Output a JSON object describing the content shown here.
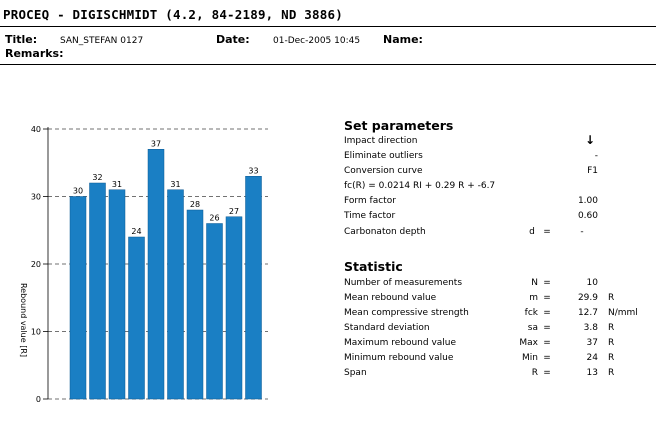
{
  "header": {
    "title": "PROCEQ - DIGISCHMIDT (4.2, 84-2189, ND 3886)",
    "title_label": "Title:",
    "title_value": "SAN_STEFAN 0127",
    "date_label": "Date:",
    "date_value": "01-Dec-2005 10:45",
    "name_label": "Name:",
    "remarks_label": "Remarks:"
  },
  "set_parameters": {
    "title": "Set parameters",
    "impact_direction": {
      "label": "Impact direction",
      "value": "↓"
    },
    "eliminate_outliers": {
      "label": "Eliminate outliers",
      "value": "-"
    },
    "conversion_curve": {
      "label": "Conversion curve",
      "value": "F1"
    },
    "formula": "fc(R) = 0.0214 RI + 0.29 R + -6.7",
    "form_factor": {
      "label": "Form factor",
      "value": "1.00"
    },
    "time_factor": {
      "label": "Time factor",
      "value": "0.60"
    },
    "carbonation_depth": {
      "label": "Carbonaton depth",
      "symbol": "d",
      "eq": "=",
      "value": "-"
    }
  },
  "statistic": {
    "title": "Statistic",
    "rows": [
      {
        "label": "Number of measurements",
        "symbol": "N",
        "eq": "=",
        "value": "10",
        "unit": ""
      },
      {
        "label": "Mean rebound value",
        "symbol": "m",
        "eq": "=",
        "value": "29.9",
        "unit": "R"
      },
      {
        "label": "Mean compressive strength",
        "symbol": "fck",
        "eq": "=",
        "value": "12.7",
        "unit": "N/mml"
      },
      {
        "label": "Standard deviation",
        "symbol": "sa",
        "eq": "=",
        "value": "3.8",
        "unit": "R"
      },
      {
        "label": "Maximum rebound value",
        "symbol": "Max",
        "eq": "=",
        "value": "37",
        "unit": "R"
      },
      {
        "label": "Minimum rebound value",
        "symbol": "Min",
        "eq": "=",
        "value": "24",
        "unit": "R"
      },
      {
        "label": "Span",
        "symbol": "R",
        "eq": "=",
        "value": "13",
        "unit": "R"
      }
    ]
  },
  "chart_data": {
    "type": "bar",
    "values": [
      30,
      32,
      31,
      24,
      37,
      31,
      28,
      26,
      27,
      33
    ],
    "ylabel": "Rebound value [R]",
    "ylim": [
      0,
      40
    ],
    "yticks": [
      0,
      10,
      20,
      30,
      40
    ],
    "grid": "dashed horizontal",
    "bar_color": "#1a7fc4"
  }
}
